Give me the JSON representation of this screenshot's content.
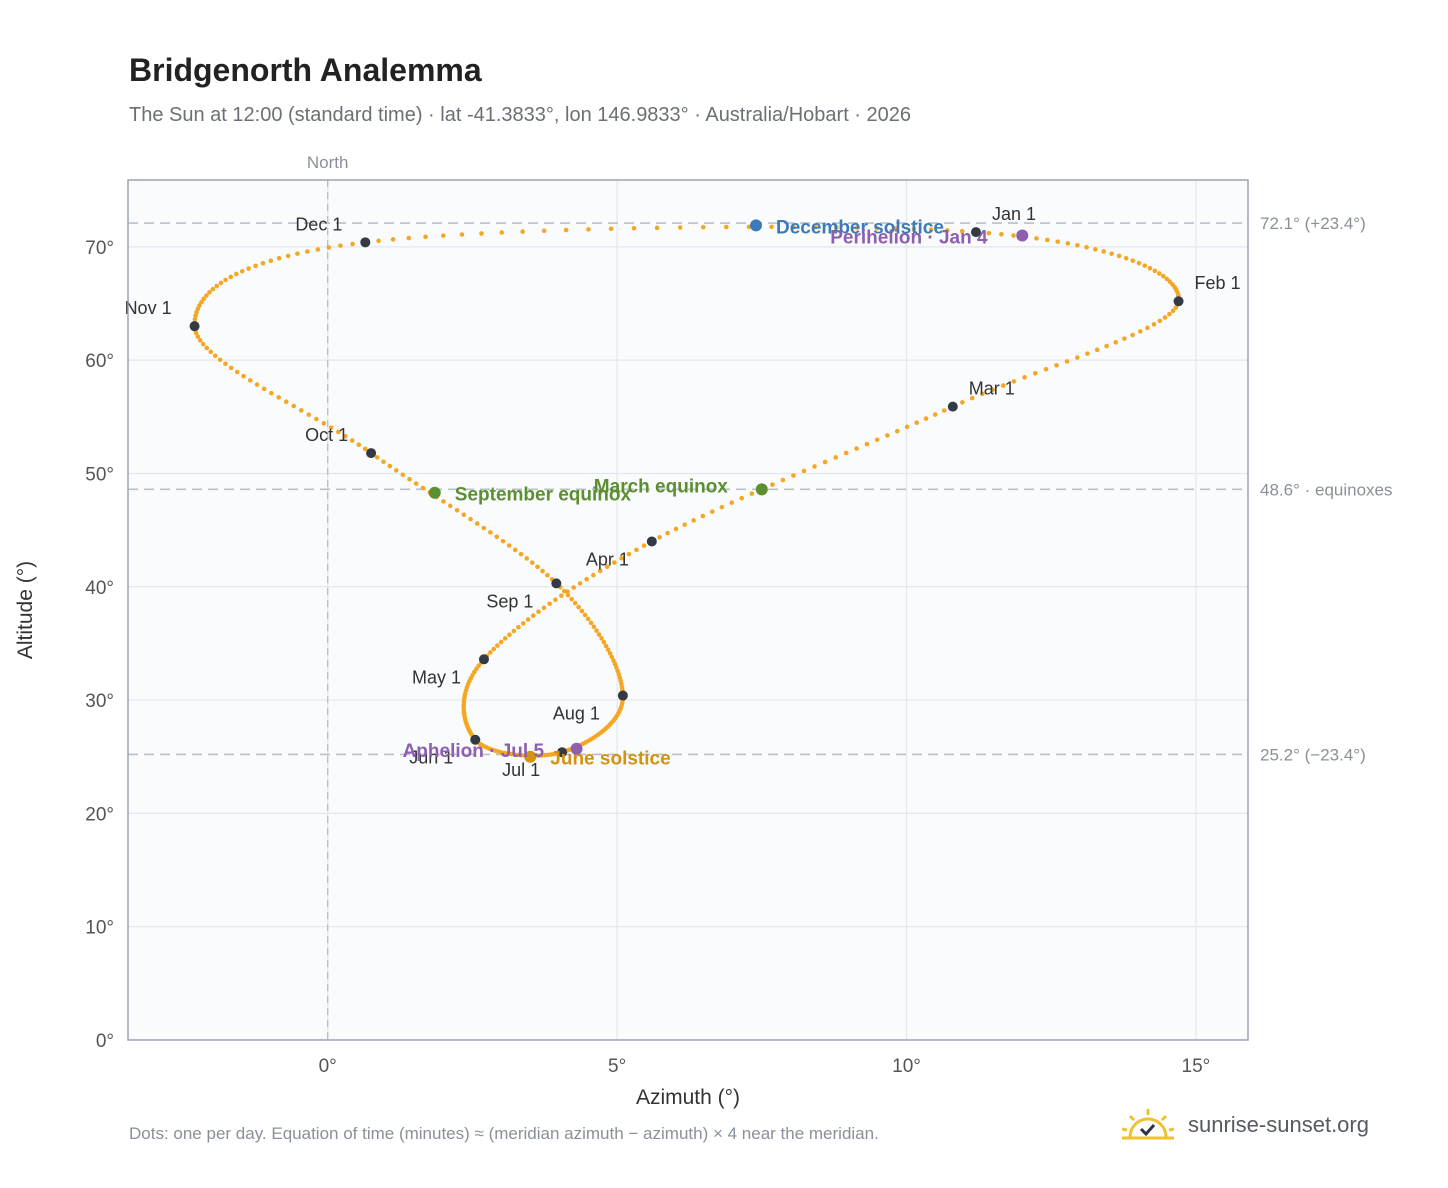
{
  "header": {
    "title": "Bridgenorth Analemma",
    "subtitle": "The Sun at 12:00 (standard time) · lat -41.3833°, lon 146.9833° · Australia/Hobart · 2026"
  },
  "footer": {
    "note": "Dots: one per day. Equation of time (minutes) ≈ (meridian azimuth − azimuth) × 4 near the meridian.",
    "brand": "sunrise-sunset.org",
    "brand_icon": "sun-check-icon"
  },
  "colors": {
    "curve": "#f5a623",
    "month_dot": "#333a44",
    "equinox": "#5b8f2f",
    "solstice_june": "#d4920f",
    "solstice_december": "#3d7ab8",
    "perihelion": "#8e5fb0",
    "grid": "#e3e8ee",
    "plot_bg": "#f9fbfd",
    "reference_line": "#b8c0c8"
  },
  "chart_data": {
    "type": "scatter",
    "xlabel": "Azimuth (°)",
    "ylabel": "Altitude (°)",
    "xlim": [
      -3.45,
      15.9
    ],
    "ylim": [
      0,
      75.9
    ],
    "grid": true,
    "x_ticks": [
      {
        "value": 0,
        "label": "0°"
      },
      {
        "value": 5,
        "label": "5°"
      },
      {
        "value": 10,
        "label": "10°"
      },
      {
        "value": 15,
        "label": "15°"
      }
    ],
    "y_ticks": [
      {
        "value": 0,
        "label": "0°"
      },
      {
        "value": 10,
        "label": "10°"
      },
      {
        "value": 20,
        "label": "20°"
      },
      {
        "value": 30,
        "label": "30°"
      },
      {
        "value": 40,
        "label": "40°"
      },
      {
        "value": 50,
        "label": "50°"
      },
      {
        "value": 60,
        "label": "60°"
      },
      {
        "value": 70,
        "label": "70°"
      }
    ],
    "north": {
      "azimuth": 0,
      "label": "North"
    },
    "reference_lines": [
      {
        "altitude": 72.1,
        "label": "72.1° (+23.4°)"
      },
      {
        "altitude": 48.6,
        "label": "48.6° · equinoxes"
      },
      {
        "altitude": 25.2,
        "label": "25.2° (−23.4°)"
      }
    ],
    "month_markers": [
      {
        "label": "Jan 1",
        "azimuth": 11.2,
        "altitude": 71.3
      },
      {
        "label": "Feb 1",
        "azimuth": 14.7,
        "altitude": 65.2
      },
      {
        "label": "Mar 1",
        "azimuth": 10.8,
        "altitude": 55.9
      },
      {
        "label": "Apr 1",
        "azimuth": 5.6,
        "altitude": 44.0
      },
      {
        "label": "May 1",
        "azimuth": 2.7,
        "altitude": 33.6
      },
      {
        "label": "Jun 1",
        "azimuth": 2.55,
        "altitude": 26.5
      },
      {
        "label": "Jul 1",
        "azimuth": 4.05,
        "altitude": 25.4
      },
      {
        "label": "Aug 1",
        "azimuth": 5.1,
        "altitude": 30.4
      },
      {
        "label": "Sep 1",
        "azimuth": 3.95,
        "altitude": 40.3
      },
      {
        "label": "Oct 1",
        "azimuth": 0.75,
        "altitude": 51.8
      },
      {
        "label": "Nov 1",
        "azimuth": -2.3,
        "altitude": 63.0
      },
      {
        "label": "Dec 1",
        "azimuth": 0.65,
        "altitude": 70.4
      }
    ],
    "events": [
      {
        "label": "March equinox",
        "azimuth": 7.5,
        "altitude": 48.6,
        "color": "#5b8f2f"
      },
      {
        "label": "September equinox",
        "azimuth": 1.85,
        "altitude": 48.3,
        "color": "#5b8f2f"
      },
      {
        "label": "June solstice",
        "azimuth": 3.5,
        "altitude": 25.0,
        "color": "#d4920f"
      },
      {
        "label": "December solstice",
        "azimuth": 7.4,
        "altitude": 71.9,
        "color": "#3d7ab8"
      },
      {
        "label": "Perihelion · Jan 4",
        "azimuth": 12.0,
        "altitude": 71.0,
        "color": "#8e5fb0"
      },
      {
        "label": "Aphelion · Jul 5",
        "azimuth": 4.3,
        "altitude": 25.7,
        "color": "#8e5fb0"
      }
    ]
  }
}
